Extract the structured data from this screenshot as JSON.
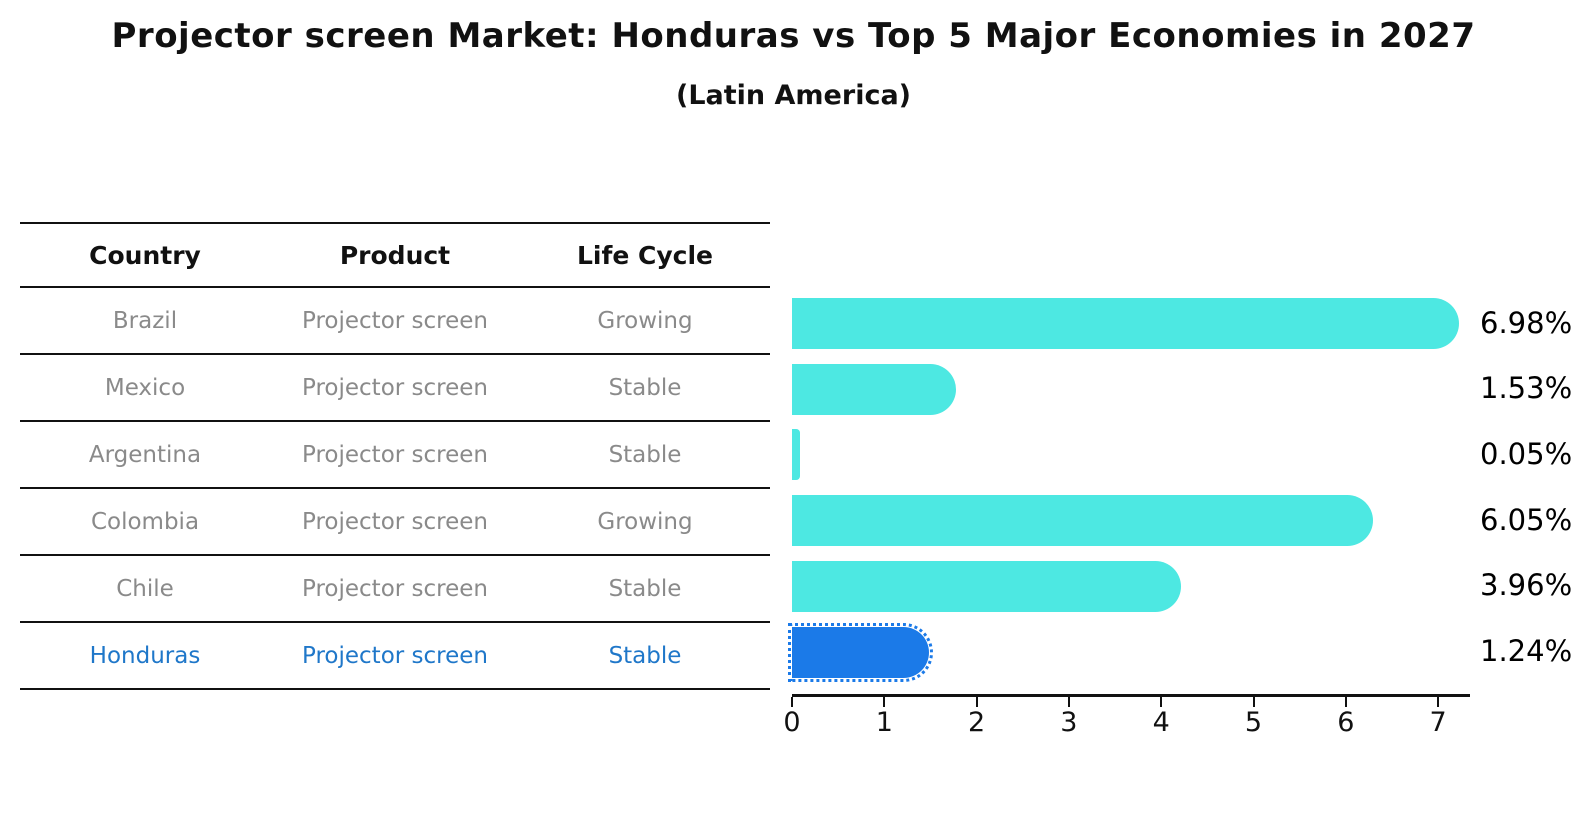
{
  "title": "Projector screen Market: Honduras vs Top 5 Major Economies in 2027",
  "subtitle": "(Latin America)",
  "table": {
    "headers": [
      "Country",
      "Product",
      "Life Cycle"
    ],
    "rows": [
      {
        "country": "Brazil",
        "product": "Projector screen",
        "life_cycle": "Growing",
        "highlight": false
      },
      {
        "country": "Mexico",
        "product": "Projector screen",
        "life_cycle": "Stable",
        "highlight": false
      },
      {
        "country": "Argentina",
        "product": "Projector screen",
        "life_cycle": "Stable",
        "highlight": false
      },
      {
        "country": "Colombia",
        "product": "Projector screen",
        "life_cycle": "Growing",
        "highlight": false
      },
      {
        "country": "Chile",
        "product": "Projector screen",
        "life_cycle": "Stable",
        "highlight": false
      },
      {
        "country": "Honduras",
        "product": "Projector screen",
        "life_cycle": "Stable",
        "highlight": true
      }
    ]
  },
  "chart_data": {
    "type": "bar",
    "orientation": "horizontal",
    "title": "Projector screen Market: Honduras vs Top 5 Major Economies in 2027",
    "subtitle": "(Latin America)",
    "categories": [
      "Brazil",
      "Mexico",
      "Argentina",
      "Colombia",
      "Chile",
      "Honduras"
    ],
    "values": [
      6.98,
      1.53,
      0.05,
      6.05,
      3.96,
      1.24
    ],
    "value_labels": [
      "6.98%",
      "1.53%",
      "0.05%",
      "6.05%",
      "3.96%",
      "1.24%"
    ],
    "xticks": [
      0,
      1,
      2,
      3,
      4,
      5,
      6,
      7
    ],
    "xlim": [
      0,
      7.35
    ],
    "xlabel": "",
    "ylabel": "",
    "grid": false,
    "legend": false,
    "bar_color": "#4DE8E2",
    "highlight_bar_color": "#1B7AE8",
    "highlight_index": 5
  },
  "colors": {
    "background": "#FFFFFF",
    "title_text": "#111111",
    "table_header_text": "#111111",
    "table_row_text": "#8A8A8A",
    "highlight_row_text": "#1F77C9",
    "divider": "#111111",
    "axis": "#111111"
  }
}
